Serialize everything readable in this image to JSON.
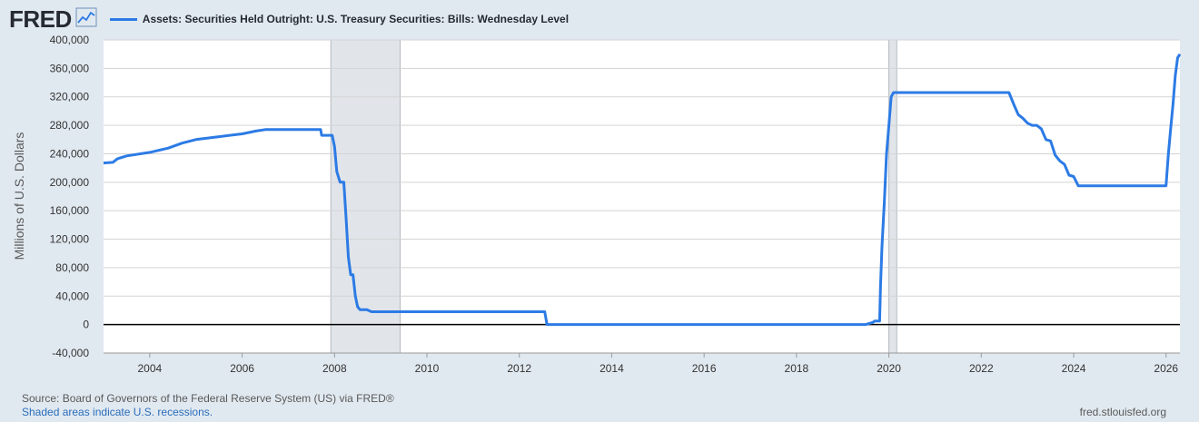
{
  "brand": {
    "logo_text": "FRED"
  },
  "series_title": "Assets: Securities Held Outright: U.S. Treasury Securities: Bills: Wednesday Level",
  "footer": {
    "source": "Source: Board of Governors of the Federal Reserve System (US) via FRED®",
    "recessions": "Shaded areas indicate U.S. recessions.",
    "site": "fred.stlouisfed.org"
  },
  "colors": {
    "line": "#2c7be5",
    "background": "#e1e9f0",
    "plot_bg": "#ffffff",
    "recession": "#e1e5ea"
  },
  "chart_data": {
    "type": "line",
    "ylabel": "Millions of U.S. Dollars",
    "xlim": [
      2003.0,
      2026.3
    ],
    "ylim": [
      -40000,
      400000
    ],
    "y_ticks": [
      -40000,
      0,
      40000,
      80000,
      120000,
      160000,
      200000,
      240000,
      280000,
      320000,
      360000,
      400000
    ],
    "y_tick_labels": [
      "-40,000",
      "0",
      "40,000",
      "80,000",
      "120,000",
      "160,000",
      "200,000",
      "240,000",
      "280,000",
      "320,000",
      "360,000",
      "400,000"
    ],
    "x_ticks": [
      2004,
      2006,
      2008,
      2010,
      2012,
      2014,
      2016,
      2018,
      2020,
      2022,
      2024,
      2026
    ],
    "x_tick_labels": [
      "2004",
      "2006",
      "2008",
      "2010",
      "2012",
      "2014",
      "2016",
      "2018",
      "2020",
      "2022",
      "2024",
      "2026"
    ],
    "grid": true,
    "recessions": [
      [
        2007.92,
        2009.42
      ],
      [
        2020.0,
        2020.17
      ]
    ],
    "series": [
      {
        "name": "Assets: Securities Held Outright: U.S. Treasury Securities: Bills: Wednesday Level",
        "x": [
          2003.0,
          2003.2,
          2003.3,
          2003.5,
          2004.0,
          2004.4,
          2004.7,
          2005.0,
          2005.5,
          2006.0,
          2006.3,
          2006.5,
          2007.0,
          2007.5,
          2007.7,
          2007.72,
          2007.95,
          2008.0,
          2008.05,
          2008.12,
          2008.2,
          2008.25,
          2008.3,
          2008.35,
          2008.4,
          2008.45,
          2008.5,
          2008.55,
          2008.6,
          2008.65,
          2008.7,
          2008.8,
          2009.0,
          2009.5,
          2010.0,
          2011.0,
          2012.0,
          2012.55,
          2012.6,
          2013.0,
          2014.0,
          2016.0,
          2018.0,
          2019.5,
          2019.65,
          2019.7,
          2019.8,
          2019.82,
          2019.85,
          2019.9,
          2019.95,
          2020.0,
          2020.05,
          2020.1,
          2020.15,
          2020.2,
          2020.3,
          2020.5,
          2021.0,
          2022.0,
          2022.6,
          2022.7,
          2022.8,
          2022.9,
          2023.0,
          2023.1,
          2023.2,
          2023.3,
          2023.4,
          2023.5,
          2023.6,
          2023.7,
          2023.8,
          2023.9,
          2024.0,
          2024.1,
          2024.2,
          2024.3,
          2025.0,
          2025.5,
          2026.0,
          2026.05,
          2026.1,
          2026.15,
          2026.2,
          2026.25,
          2026.3
        ],
        "y": [
          227000,
          228000,
          233000,
          237000,
          242000,
          248000,
          255000,
          260000,
          264000,
          268000,
          272000,
          274000,
          274000,
          274000,
          274000,
          266000,
          266000,
          250000,
          215000,
          200000,
          200000,
          150000,
          95000,
          70000,
          70000,
          40000,
          25000,
          21000,
          21000,
          21000,
          21000,
          18000,
          18000,
          18000,
          18000,
          18000,
          18000,
          18000,
          0,
          0,
          0,
          0,
          0,
          0,
          3000,
          5000,
          5000,
          55000,
          110000,
          170000,
          240000,
          280000,
          320000,
          326000,
          326000,
          326000,
          326000,
          326000,
          326000,
          326000,
          326000,
          310000,
          295000,
          290000,
          283000,
          280000,
          280000,
          275000,
          260000,
          258000,
          238000,
          230000,
          225000,
          210000,
          208000,
          195000,
          195000,
          195000,
          195000,
          195000,
          195000,
          240000,
          275000,
          310000,
          350000,
          375000,
          380000
        ]
      }
    ]
  }
}
